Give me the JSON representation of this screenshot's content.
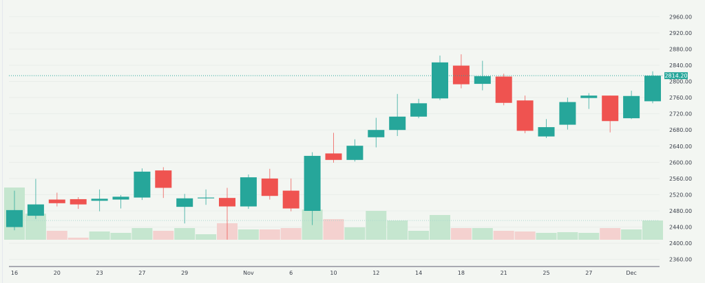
{
  "chart_data": {
    "type": "candlestick",
    "title": "",
    "xlabel": "",
    "ylabel": "",
    "ylim": [
      2340,
      2980
    ],
    "grid": true,
    "y_ticks": [
      "2960.00",
      "2920.00",
      "2880.00",
      "2840.00",
      "2800.00",
      "2760.00",
      "2720.00",
      "2680.00",
      "2640.00",
      "2600.00",
      "2560.00",
      "2520.00",
      "2480.00",
      "2440.00",
      "2400.00",
      "2360.00"
    ],
    "x_ticks": [
      {
        "label": "16",
        "index": 0
      },
      {
        "label": "20",
        "index": 2
      },
      {
        "label": "23",
        "index": 4
      },
      {
        "label": "27",
        "index": 6
      },
      {
        "label": "29",
        "index": 8
      },
      {
        "label": "Nov",
        "index": 11
      },
      {
        "label": "6",
        "index": 13
      },
      {
        "label": "10",
        "index": 15
      },
      {
        "label": "12",
        "index": 17
      },
      {
        "label": "14",
        "index": 19
      },
      {
        "label": "18",
        "index": 21
      },
      {
        "label": "21",
        "index": 23
      },
      {
        "label": "25",
        "index": 25
      },
      {
        "label": "27",
        "index": 27
      },
      {
        "label": "Dec",
        "index": 29
      }
    ],
    "last_price": 2814.2,
    "last_price_label": "2814.20",
    "colors": {
      "up": "#26a69a",
      "down": "#ef5350",
      "volume_up": "#c5e6cf",
      "volume_down": "#f4d1cf",
      "background": "#f3f6f2"
    },
    "candles": [
      {
        "o": 2440,
        "h": 2530,
        "l": 2432,
        "c": 2482,
        "v": 76
      },
      {
        "o": 2468,
        "h": 2559,
        "l": 2460,
        "c": 2496,
        "v": 38
      },
      {
        "o": 2508,
        "h": 2525,
        "l": 2491,
        "c": 2499,
        "v": 13
      },
      {
        "o": 2509,
        "h": 2514,
        "l": 2485,
        "c": 2496,
        "v": 3
      },
      {
        "o": 2505,
        "h": 2533,
        "l": 2479,
        "c": 2510,
        "v": 12
      },
      {
        "o": 2508,
        "h": 2519,
        "l": 2486,
        "c": 2515,
        "v": 10
      },
      {
        "o": 2513,
        "h": 2585,
        "l": 2507,
        "c": 2577,
        "v": 17
      },
      {
        "o": 2580,
        "h": 2588,
        "l": 2512,
        "c": 2537,
        "v": 13
      },
      {
        "o": 2490,
        "h": 2522,
        "l": 2449,
        "c": 2511,
        "v": 17
      },
      {
        "o": 2511,
        "h": 2533,
        "l": 2495,
        "c": 2513,
        "v": 8
      },
      {
        "o": 2512,
        "h": 2537,
        "l": 2409,
        "c": 2491,
        "v": 24
      },
      {
        "o": 2491,
        "h": 2570,
        "l": 2485,
        "c": 2563,
        "v": 15
      },
      {
        "o": 2560,
        "h": 2584,
        "l": 2508,
        "c": 2517,
        "v": 15
      },
      {
        "o": 2530,
        "h": 2560,
        "l": 2479,
        "c": 2486,
        "v": 17
      },
      {
        "o": 2480,
        "h": 2625,
        "l": 2445,
        "c": 2616,
        "v": 44
      },
      {
        "o": 2622,
        "h": 2673,
        "l": 2599,
        "c": 2606,
        "v": 30
      },
      {
        "o": 2606,
        "h": 2657,
        "l": 2602,
        "c": 2641,
        "v": 18
      },
      {
        "o": 2662,
        "h": 2710,
        "l": 2637,
        "c": 2680,
        "v": 42
      },
      {
        "o": 2680,
        "h": 2769,
        "l": 2665,
        "c": 2713,
        "v": 28
      },
      {
        "o": 2713,
        "h": 2757,
        "l": 2709,
        "c": 2746,
        "v": 13
      },
      {
        "o": 2758,
        "h": 2864,
        "l": 2754,
        "c": 2847,
        "v": 36
      },
      {
        "o": 2839,
        "h": 2867,
        "l": 2783,
        "c": 2793,
        "v": 17
      },
      {
        "o": 2794,
        "h": 2851,
        "l": 2778,
        "c": 2813,
        "v": 17
      },
      {
        "o": 2812,
        "h": 2819,
        "l": 2741,
        "c": 2747,
        "v": 13
      },
      {
        "o": 2753,
        "h": 2765,
        "l": 2672,
        "c": 2678,
        "v": 12
      },
      {
        "o": 2664,
        "h": 2707,
        "l": 2660,
        "c": 2687,
        "v": 10
      },
      {
        "o": 2693,
        "h": 2760,
        "l": 2681,
        "c": 2749,
        "v": 11
      },
      {
        "o": 2759,
        "h": 2771,
        "l": 2732,
        "c": 2765,
        "v": 10
      },
      {
        "o": 2765,
        "h": 2765,
        "l": 2674,
        "c": 2702,
        "v": 17
      },
      {
        "o": 2709,
        "h": 2777,
        "l": 2707,
        "c": 2764,
        "v": 15
      },
      {
        "o": 2751,
        "h": 2825,
        "l": 2746,
        "c": 2814.2,
        "v": 28
      }
    ]
  }
}
